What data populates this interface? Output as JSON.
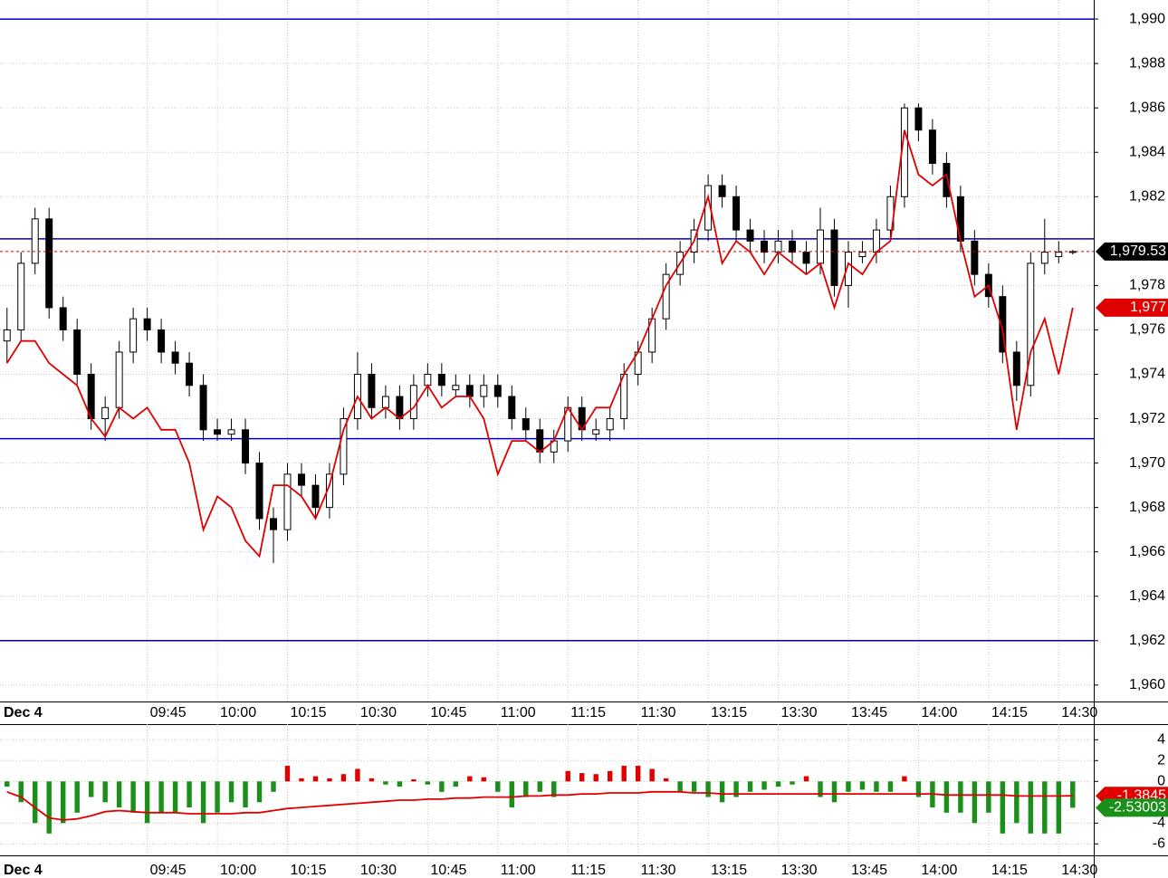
{
  "chart_data": [
    {
      "type": "candlestick",
      "date_label": "Dec 4",
      "xlim": [
        -0.5,
        77.5
      ],
      "xticks": [
        {
          "value": 10,
          "label": "09:45"
        },
        {
          "value": 15,
          "label": "10:00"
        },
        {
          "value": 20,
          "label": "10:15"
        },
        {
          "value": 25,
          "label": "10:30"
        },
        {
          "value": 30,
          "label": "10:45"
        },
        {
          "value": 35,
          "label": "11:00"
        },
        {
          "value": 40,
          "label": "11:15"
        },
        {
          "value": 45,
          "label": "11:30"
        },
        {
          "value": 50,
          "label": "13:15"
        },
        {
          "value": 55,
          "label": "13:30"
        },
        {
          "value": 60,
          "label": "13:45"
        },
        {
          "value": 65,
          "label": "14:00"
        },
        {
          "value": 70,
          "label": "14:15"
        },
        {
          "value": 75,
          "label": "14:30"
        }
      ],
      "ylim": [
        1959.26,
        1990.86
      ],
      "yticks": [
        {
          "value": 1960,
          "label": "1,960"
        },
        {
          "value": 1962,
          "label": "1,962"
        },
        {
          "value": 1964,
          "label": "1,964"
        },
        {
          "value": 1966,
          "label": "1,966"
        },
        {
          "value": 1968,
          "label": "1,968"
        },
        {
          "value": 1970,
          "label": "1,970"
        },
        {
          "value": 1972,
          "label": "1,972"
        },
        {
          "value": 1974,
          "label": "1,974"
        },
        {
          "value": 1976,
          "label": "1,976"
        },
        {
          "value": 1978,
          "label": "1,978"
        },
        {
          "value": 1982,
          "label": "1,982"
        },
        {
          "value": 1984,
          "label": "1,984"
        },
        {
          "value": 1986,
          "label": "1,986"
        },
        {
          "value": 1988,
          "label": "1,988"
        },
        {
          "value": 1990,
          "label": "1,990"
        }
      ],
      "grid": true,
      "up_color": "#ffffff",
      "down_color": "#000000",
      "open": [
        1975.5,
        1976,
        1979,
        1981,
        1977,
        1976,
        1974,
        1972,
        1972.5,
        1975,
        1976.5,
        1976,
        1975,
        1974.5,
        1973.5,
        1971.5,
        1971.3,
        1971.5,
        1970,
        1967.5,
        1967,
        1969.5,
        1969,
        1968,
        1969.5,
        1972,
        1974,
        1972.5,
        1973,
        1972,
        1973.5,
        1974,
        1973.3,
        1973.5,
        1973,
        1973.5,
        1973,
        1972,
        1971.5,
        1970.5,
        1971,
        1972.5,
        1971.3,
        1971.5,
        1972,
        1974,
        1975,
        1976.5,
        1978.5,
        1979.5,
        1980.5,
        1982.5,
        1982,
        1980.5,
        1980,
        1979.5,
        1980,
        1979.5,
        1979,
        1980.5,
        1978,
        1979.3,
        1979.5,
        1980.5,
        1982,
        1986,
        1985,
        1983.5,
        1982,
        1980,
        1978.5,
        1977.5,
        1975,
        1973.5,
        1979,
        1979.3,
        1979.5
      ],
      "high": [
        1977,
        1979.5,
        1981.5,
        1981.5,
        1977.5,
        1976.5,
        1974.5,
        1973,
        1975.5,
        1977,
        1977,
        1976.5,
        1975.5,
        1975,
        1974,
        1972,
        1972,
        1972,
        1970.5,
        1968,
        1970,
        1970,
        1969.5,
        1970,
        1972.5,
        1975,
        1974.5,
        1973.5,
        1973.5,
        1974,
        1974.5,
        1974.5,
        1974,
        1974,
        1974,
        1974,
        1973.5,
        1972.5,
        1972,
        1971.5,
        1973,
        1973,
        1972,
        1972.5,
        1974.5,
        1975.5,
        1977,
        1979,
        1980,
        1981,
        1983,
        1983,
        1982.5,
        1981,
        1980.5,
        1980.5,
        1980.5,
        1980,
        1981.5,
        1981,
        1980,
        1980,
        1981,
        1982.5,
        1986.2,
        1986.2,
        1985.5,
        1984,
        1982.5,
        1980.5,
        1979,
        1978,
        1975.5,
        1979.5,
        1981,
        1980,
        1979.6
      ],
      "low": [
        1974.5,
        1975.5,
        1978.5,
        1976.5,
        1975.5,
        1973.5,
        1971.5,
        1971,
        1972,
        1974.5,
        1975.5,
        1974.5,
        1974,
        1973,
        1971,
        1971,
        1971,
        1969.5,
        1967,
        1965.5,
        1966.5,
        1968.5,
        1967.5,
        1967.5,
        1969,
        1971.5,
        1972,
        1972,
        1971.5,
        1971.5,
        1973,
        1973,
        1973,
        1972.5,
        1972.5,
        1972.5,
        1971.5,
        1971,
        1970,
        1970,
        1970.5,
        1971,
        1971,
        1971,
        1971.5,
        1973.5,
        1974.5,
        1976,
        1978,
        1979,
        1980,
        1981.5,
        1980,
        1979.5,
        1979,
        1979,
        1979,
        1978.5,
        1978.5,
        1977.5,
        1977,
        1979,
        1979,
        1980,
        1981.5,
        1984.5,
        1983,
        1981.5,
        1979.5,
        1978,
        1977,
        1974.5,
        1972.8,
        1973,
        1978.5,
        1979,
        1979.4
      ],
      "close": [
        1976,
        1979,
        1981,
        1977,
        1976,
        1974,
        1972,
        1972.5,
        1975,
        1976.5,
        1976,
        1975,
        1974.5,
        1973.5,
        1971.5,
        1971.3,
        1971.5,
        1970,
        1967.5,
        1967,
        1969.5,
        1969,
        1968,
        1969.5,
        1972,
        1974,
        1972.5,
        1973,
        1972,
        1973.5,
        1974,
        1973.5,
        1973.5,
        1973,
        1973.5,
        1973,
        1972,
        1971.5,
        1970.5,
        1971,
        1972.5,
        1971.5,
        1971.5,
        1972,
        1974,
        1975,
        1976.5,
        1978.5,
        1979.5,
        1980.5,
        1982.5,
        1982,
        1980.5,
        1980,
        1979.5,
        1980,
        1979.5,
        1979,
        1980.5,
        1978,
        1979.5,
        1979.5,
        1980.5,
        1982,
        1986,
        1985,
        1983.5,
        1982,
        1980,
        1978.5,
        1977.5,
        1975,
        1973.5,
        1979,
        1979.5,
        1979.5,
        1979.53
      ],
      "lines": [
        {
          "color": "#e00000",
          "values": [
            1974.5,
            1975.5,
            1975.5,
            1974.5,
            1974,
            1973.5,
            1972,
            1971.2,
            1972.5,
            1972,
            1972.5,
            1971.5,
            1971.5,
            1970,
            1967,
            1968.5,
            1968,
            1966.5,
            1965.8,
            1969,
            1969,
            1968.5,
            1967.5,
            1969,
            1971.5,
            1973,
            1972,
            1972.5,
            1972,
            1972.5,
            1973.5,
            1972.5,
            1973,
            1973,
            1972,
            1969.5,
            1971,
            1971,
            1970.5,
            1971,
            1972.5,
            1971.5,
            1972.5,
            1972.5,
            1974,
            1975,
            1976.5,
            1978,
            1979,
            1980,
            1982,
            1979,
            1980,
            1979.5,
            1978.5,
            1979.5,
            1979,
            1978.5,
            1979,
            1977,
            1979,
            1978.5,
            1979.5,
            1980,
            1985,
            1983,
            1982.5,
            1983,
            1980,
            1977.5,
            1978,
            1976,
            1971.5,
            1975,
            1976.5,
            1974,
            1977
          ]
        }
      ],
      "hlines": [
        {
          "value": 1990,
          "color": "#0000cc"
        },
        {
          "value": 1980.1,
          "color": "#0000cc"
        },
        {
          "value": 1971.1,
          "color": "#0000cc"
        },
        {
          "value": 1962,
          "color": "#0000cc"
        }
      ],
      "price_tags": [
        {
          "value": 1979.53,
          "label": "1,979.53",
          "color": "#000000",
          "dashed": true
        },
        {
          "value": 1977,
          "label": "1,977",
          "color": "#e00000",
          "dashed": false
        }
      ]
    },
    {
      "type": "bar",
      "date_label": "Dec 4",
      "xlim": [
        -0.5,
        77.5
      ],
      "xticks": [
        {
          "value": 10,
          "label": "09:45"
        },
        {
          "value": 15,
          "label": "10:00"
        },
        {
          "value": 20,
          "label": "10:15"
        },
        {
          "value": 25,
          "label": "10:30"
        },
        {
          "value": 30,
          "label": "10:45"
        },
        {
          "value": 35,
          "label": "11:00"
        },
        {
          "value": 40,
          "label": "11:15"
        },
        {
          "value": 45,
          "label": "11:30"
        },
        {
          "value": 50,
          "label": "13:15"
        },
        {
          "value": 55,
          "label": "13:30"
        },
        {
          "value": 60,
          "label": "13:45"
        },
        {
          "value": 65,
          "label": "14:00"
        },
        {
          "value": 70,
          "label": "14:15"
        },
        {
          "value": 75,
          "label": "14:30"
        }
      ],
      "ylim": [
        -7.1,
        5.5
      ],
      "yticks": [
        -6,
        -4,
        0,
        2,
        4
      ],
      "grid": true,
      "up_color": "#e00000",
      "down_color": "#1a8f1a",
      "values": [
        -0.5,
        -2,
        -4,
        -5,
        -4,
        -3,
        -1.5,
        -2,
        -2.5,
        -3,
        -4,
        -3,
        -3,
        -2.5,
        -4,
        -3,
        -2,
        -2.5,
        -2,
        -1,
        1.5,
        0.3,
        0.5,
        0.3,
        0.7,
        1.2,
        0.3,
        -0.3,
        -0.5,
        0.2,
        -0.3,
        -1,
        -0.5,
        0.5,
        0.4,
        -1,
        -2.5,
        -1.5,
        -1,
        -1.5,
        1,
        0.8,
        0.7,
        1,
        1.5,
        1.5,
        1.2,
        0.3,
        -1,
        -1,
        -1.5,
        -2,
        -1.5,
        -1,
        -0.8,
        -0.5,
        -0.3,
        0.5,
        -1.5,
        -2,
        -1,
        -0.8,
        -1,
        -1,
        0.5,
        -1.5,
        -2.5,
        -3,
        -3,
        -4,
        -3,
        -5,
        -4,
        -5,
        -5,
        -5,
        -2.53003
      ],
      "lines": [
        {
          "color": "#e00000",
          "values": [
            -1,
            -1.5,
            -2.5,
            -3.5,
            -3.7,
            -3.6,
            -3.3,
            -2.9,
            -2.8,
            -2.9,
            -3,
            -3,
            -3,
            -3.1,
            -3.1,
            -3.1,
            -3.1,
            -3,
            -3,
            -2.8,
            -2.6,
            -2.5,
            -2.4,
            -2.3,
            -2.2,
            -2.1,
            -2,
            -1.9,
            -1.8,
            -1.8,
            -1.7,
            -1.7,
            -1.6,
            -1.6,
            -1.5,
            -1.5,
            -1.5,
            -1.4,
            -1.4,
            -1.3,
            -1.3,
            -1.2,
            -1.2,
            -1.1,
            -1.1,
            -1.1,
            -1,
            -1,
            -1,
            -1.1,
            -1.1,
            -1.2,
            -1.2,
            -1.2,
            -1.2,
            -1.2,
            -1.2,
            -1.2,
            -1.2,
            -1.2,
            -1.2,
            -1.2,
            -1.2,
            -1.2,
            -1.2,
            -1.2,
            -1.2,
            -1.3,
            -1.3,
            -1.3,
            -1.3,
            -1.3,
            -1.4,
            -1.4,
            -1.4,
            -1.4,
            -1.3845
          ]
        }
      ],
      "value_tags": [
        {
          "value": -1.3845,
          "color": "#e00000"
        },
        {
          "value": -2.53003,
          "color": "#1a8f1a"
        }
      ]
    }
  ]
}
